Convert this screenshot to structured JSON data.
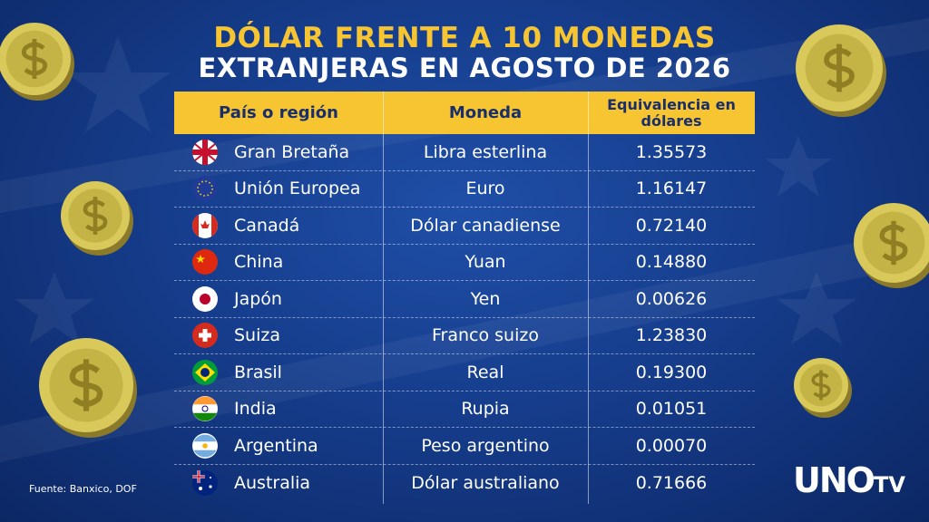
{
  "header": {
    "title_line1": "DÓLAR FRENTE A 10 MONEDAS",
    "title_line2": "EXTRANJERAS EN AGOSTO DE 2026"
  },
  "table": {
    "columns": [
      "País o región",
      "Moneda",
      "Equivalencia en dólares"
    ],
    "rows": [
      [
        "Gran Bretaña",
        "Libra esterlina",
        "1.35573"
      ],
      [
        "Unión Europea",
        "Euro",
        "1.16147"
      ],
      [
        "Canadá",
        "Dólar canadiense",
        "0.72140"
      ],
      [
        "China",
        "Yuan",
        "0.14880"
      ],
      [
        "Japón",
        "Yen",
        "0.00626"
      ],
      [
        "Suiza",
        "Franco suizo",
        "1.23830"
      ],
      [
        "Brasil",
        "Real",
        "0.19300"
      ],
      [
        "India",
        "Rupia",
        "0.01051"
      ],
      [
        "Argentina",
        "Peso argentino",
        "0.00070"
      ],
      [
        "Australia",
        "Dólar australiano",
        "0.71666"
      ]
    ]
  },
  "footer": {
    "source": "Fuente: Banxico, DOF",
    "logo_main": "UNO",
    "logo_suffix": "TV"
  }
}
